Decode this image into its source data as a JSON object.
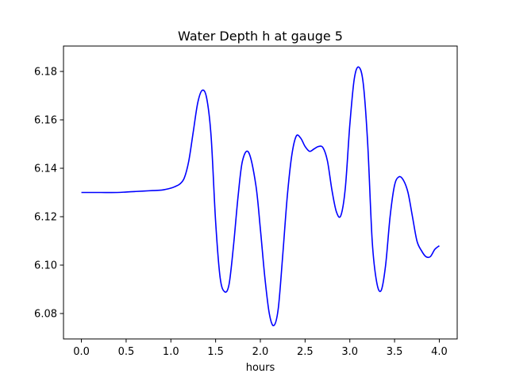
{
  "chart_data": {
    "type": "line",
    "title": "Water Depth h at gauge 5",
    "xlabel": "hours",
    "ylabel": "",
    "xlim": [
      -0.2,
      4.2
    ],
    "ylim": [
      6.0695,
      6.1905
    ],
    "xticks": [
      0.0,
      0.5,
      1.0,
      1.5,
      2.0,
      2.5,
      3.0,
      3.5,
      4.0
    ],
    "xtick_labels": [
      "0.0",
      "0.5",
      "1.0",
      "1.5",
      "2.0",
      "2.5",
      "3.0",
      "3.5",
      "4.0"
    ],
    "yticks": [
      6.08,
      6.1,
      6.12,
      6.14,
      6.16,
      6.18
    ],
    "ytick_labels": [
      "6.08",
      "6.10",
      "6.12",
      "6.14",
      "6.16",
      "6.18"
    ],
    "grid": false,
    "series": [
      {
        "color": "#0000ff",
        "x": [
          0.0,
          0.2,
          0.4,
          0.5,
          0.6,
          0.7,
          0.8,
          0.9,
          1.0,
          1.05,
          1.1,
          1.15,
          1.2,
          1.25,
          1.3,
          1.35,
          1.4,
          1.45,
          1.5,
          1.55,
          1.6,
          1.65,
          1.7,
          1.75,
          1.8,
          1.87,
          1.95,
          2.0,
          2.05,
          2.1,
          2.15,
          2.2,
          2.25,
          2.3,
          2.35,
          2.4,
          2.45,
          2.5,
          2.55,
          2.6,
          2.65,
          2.7,
          2.75,
          2.8,
          2.85,
          2.9,
          2.95,
          3.0,
          3.05,
          3.1,
          3.15,
          3.2,
          3.25,
          3.3,
          3.35,
          3.4,
          3.45,
          3.5,
          3.55,
          3.6,
          3.65,
          3.7,
          3.75,
          3.8,
          3.85,
          3.9,
          3.95,
          4.0
        ],
        "y": [
          6.13,
          6.13,
          6.13,
          6.1302,
          6.1304,
          6.1306,
          6.1308,
          6.131,
          6.1318,
          6.1325,
          6.1335,
          6.136,
          6.143,
          6.155,
          6.167,
          6.1722,
          6.169,
          6.153,
          6.118,
          6.095,
          6.089,
          6.092,
          6.108,
          6.128,
          6.143,
          6.1465,
          6.133,
          6.115,
          6.095,
          6.08,
          6.075,
          6.082,
          6.104,
          6.128,
          6.145,
          6.1532,
          6.1525,
          6.149,
          6.147,
          6.148,
          6.149,
          6.1485,
          6.143,
          6.131,
          6.122,
          6.1205,
          6.132,
          6.158,
          6.177,
          6.1818,
          6.175,
          6.15,
          6.11,
          6.093,
          6.0895,
          6.1,
          6.12,
          6.133,
          6.1365,
          6.135,
          6.13,
          6.12,
          6.11,
          6.106,
          6.1035,
          6.1035,
          6.1065,
          6.108
        ]
      }
    ]
  }
}
